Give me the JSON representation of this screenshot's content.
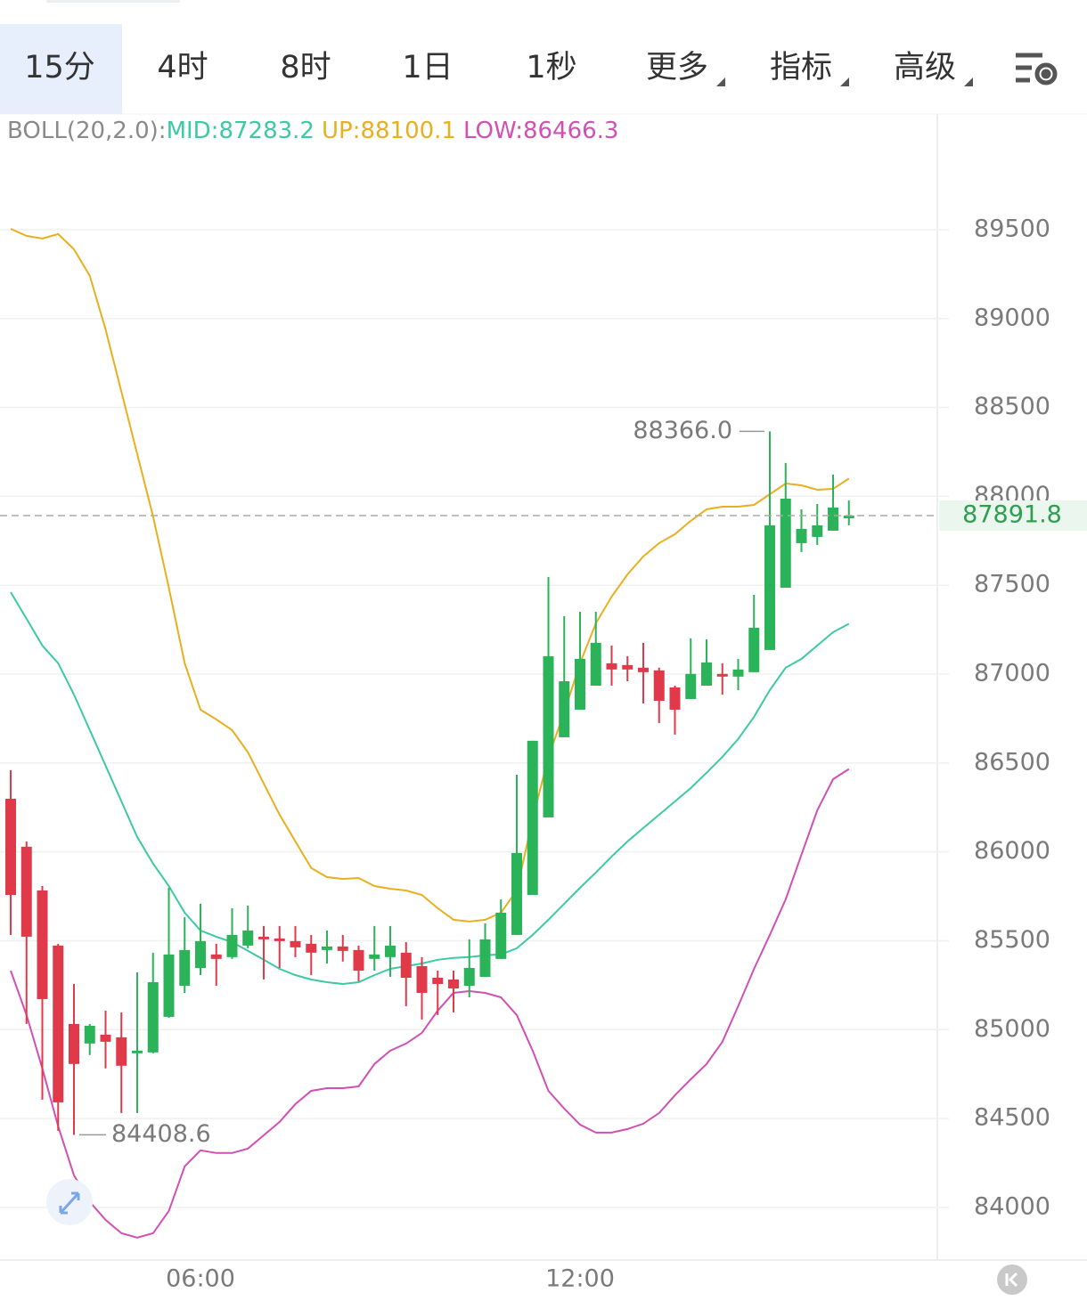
{
  "tabs": [
    "15分",
    "4时",
    "8时",
    "1日",
    "1秒",
    "更多",
    "指标",
    "高级"
  ],
  "chart_data": {
    "type": "candlestick",
    "indicator": "BOLL(20,2.0):",
    "categories": [
      null,
      null,
      null,
      null,
      null,
      null,
      null,
      null,
      null,
      null,
      null,
      null,
      "06:00",
      null,
      null,
      null,
      null,
      null,
      null,
      null,
      null,
      null,
      null,
      null,
      null,
      null,
      null,
      null,
      null,
      null,
      null,
      null,
      null,
      null,
      null,
      null,
      "12:00",
      null,
      null,
      null,
      null,
      null,
      null,
      null,
      null,
      null,
      null,
      null,
      null,
      null,
      null,
      null,
      null,
      null
    ],
    "candles": {
      "open": [
        86299,
        86029,
        85783,
        85473,
        85032,
        84922,
        84972,
        84957,
        84867,
        84872,
        85072,
        85247,
        85347,
        85423,
        85408,
        85473,
        85523,
        85513,
        85498,
        85483,
        85448,
        85468,
        85448,
        85398,
        85408,
        85433,
        85357,
        85292,
        85282,
        85247,
        85297,
        85398,
        85533,
        85758,
        86194,
        86645,
        86800,
        86935,
        87061,
        87051,
        87036,
        87021,
        86925,
        86860,
        86935,
        87001,
        86986,
        87011,
        87136,
        87486,
        87737,
        87772,
        87807,
        87877
      ],
      "high": [
        86460,
        86059,
        85808,
        85483,
        85257,
        85032,
        85107,
        85097,
        85322,
        85433,
        85798,
        85633,
        85708,
        85483,
        85683,
        85698,
        85583,
        85583,
        85583,
        85533,
        85558,
        85533,
        85473,
        85583,
        85583,
        85493,
        85408,
        85332,
        85332,
        85508,
        85598,
        85733,
        86434,
        86625,
        87546,
        87326,
        87351,
        87351,
        87161,
        87101,
        87176,
        87036,
        86935,
        87201,
        87196,
        87061,
        87086,
        87446,
        88366,
        88188,
        87927,
        87957,
        88122,
        87977
      ],
      "low": [
        85533,
        85032,
        84606,
        84431,
        84408.6,
        84857,
        84782,
        84531,
        84531,
        84867,
        85067,
        85207,
        85307,
        85247,
        85398,
        85458,
        85283,
        85347,
        85408,
        85307,
        85372,
        85383,
        85272,
        85332,
        85297,
        85132,
        85057,
        85082,
        85097,
        85182,
        85297,
        85398,
        85533,
        85758,
        86194,
        86645,
        86800,
        86935,
        86935,
        86960,
        86835,
        86725,
        86660,
        86860,
        86935,
        86885,
        86910,
        87011,
        87136,
        87486,
        87687,
        87727,
        87807,
        87837
      ],
      "close": [
        85758,
        85523,
        85172,
        84591,
        84807,
        85022,
        84932,
        84797,
        84882,
        85267,
        85423,
        85448,
        85498,
        85398,
        85533,
        85558,
        85508,
        85498,
        85463,
        85433,
        85468,
        85443,
        85332,
        85423,
        85473,
        85292,
        85207,
        85257,
        85232,
        85347,
        85508,
        85658,
        85994,
        86625,
        87101,
        86960,
        87086,
        87176,
        87026,
        87026,
        87011,
        86850,
        86800,
        87001,
        87066,
        86986,
        87026,
        87261,
        87837,
        87987,
        87817,
        87837,
        87937,
        87891.8
      ]
    },
    "up_color": "#2bb35a",
    "down_color": "#e03a4a",
    "series": [
      {
        "name": "MID:",
        "color": "#3cc9a4",
        "values": [
          87461,
          87311,
          87161,
          87061,
          86885,
          86685,
          86485,
          86284,
          86084,
          85934,
          85808,
          85658,
          85558,
          85523,
          85493,
          85443,
          85393,
          85342,
          85307,
          85282,
          85267,
          85257,
          85267,
          85307,
          85342,
          85357,
          85372,
          85393,
          85403,
          85408,
          85418,
          85423,
          85458,
          85533,
          85618,
          85708,
          85798,
          85884,
          85974,
          86059,
          86134,
          86209,
          86284,
          86359,
          86445,
          86535,
          86635,
          86760,
          86910,
          87036,
          87086,
          87161,
          87236,
          87283.2
        ]
      },
      {
        "name": "UP:",
        "color": "#e8b020",
        "values": [
          89505,
          89465,
          89450,
          89475,
          89390,
          89240,
          88939,
          88588,
          88238,
          87887,
          87486,
          87061,
          86800,
          86745,
          86685,
          86560,
          86385,
          86209,
          86059,
          85909,
          85858,
          85848,
          85853,
          85808,
          85793,
          85783,
          85758,
          85683,
          85618,
          85608,
          85618,
          85658,
          85783,
          86184,
          86535,
          86785,
          87061,
          87286,
          87436,
          87561,
          87662,
          87737,
          87787,
          87862,
          87927,
          87942,
          87942,
          87952,
          88012,
          88072,
          88062,
          88037,
          88042,
          88100.1
        ]
      },
      {
        "name": "LOW:",
        "color": "#d24fb4",
        "values": [
          85332,
          85082,
          84782,
          84456,
          84181,
          84031,
          83930,
          83855,
          83830,
          83855,
          83980,
          84231,
          84321,
          84306,
          84306,
          84331,
          84406,
          84481,
          84581,
          84656,
          84671,
          84671,
          84681,
          84807,
          84882,
          84922,
          84982,
          85107,
          85207,
          85217,
          85207,
          85182,
          85082,
          84882,
          84656,
          84556,
          84466,
          84421,
          84421,
          84441,
          84471,
          84531,
          84631,
          84721,
          84807,
          84932,
          85132,
          85342,
          85533,
          85733,
          85984,
          86234,
          86409,
          86466.3
        ]
      }
    ],
    "annotations": [
      {
        "value": 88366,
        "label": "88366.0"
      },
      {
        "value": 84408.6,
        "label": "84408.6"
      }
    ],
    "last_price": 87891.8,
    "last_price_color": "#2e9e4f",
    "ylim": [
      83704,
      90151
    ],
    "yticks": [
      84000,
      84500,
      85000,
      85500,
      86000,
      86500,
      87000,
      87500,
      88000,
      88500,
      89000,
      89500
    ],
    "grid": true
  }
}
